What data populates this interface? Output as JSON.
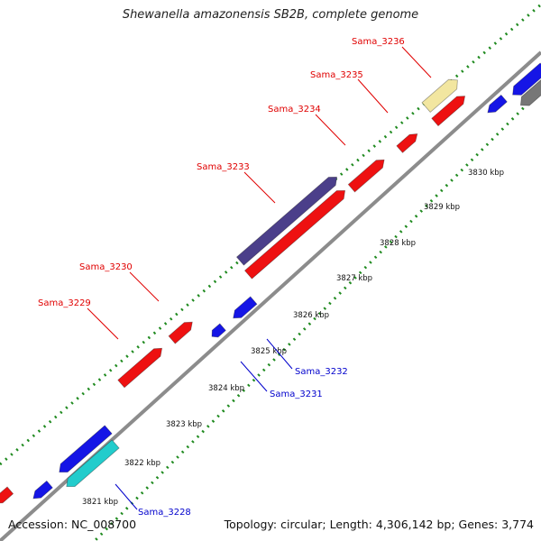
{
  "title": "Shewanella amazonensis SB2B, complete genome",
  "footer": {
    "accession": "Accession: NC_008700",
    "summary": "Topology: circular; Length: 4,306,142 bp; Genes: 3,774"
  },
  "colors": {
    "backbone": "#8c8c8c",
    "tick_dots": "#1f8a1f",
    "forward_label": "#e00000",
    "reverse_label": "#0000cc",
    "gene_red": "#ee1111",
    "gene_blue": "#1515e6",
    "gene_navy": "#4b3f8a",
    "gene_cyan": "#22cccc",
    "gene_khaki": "#f2e6a0",
    "gene_gray": "#777777"
  },
  "ticks": [
    "3821 kbp",
    "3822 kbp",
    "3823 kbp",
    "3824 kbp",
    "3825 kbp",
    "3826 kbp",
    "3827 kbp",
    "3828 kbp",
    "3829 kbp",
    "3830 kbp"
  ],
  "genes": [
    {
      "label": "Sama_3228",
      "strand": "reverse",
      "color": "gene_cyan"
    },
    {
      "label": "Sama_3229",
      "strand": "forward",
      "color": "gene_red"
    },
    {
      "label": "Sama_3230",
      "strand": "forward",
      "color": "gene_red"
    },
    {
      "label": "Sama_3231",
      "strand": "reverse",
      "color": "gene_blue"
    },
    {
      "label": "Sama_3232",
      "strand": "reverse",
      "color": "gene_blue"
    },
    {
      "label": "Sama_3233",
      "strand": "forward",
      "color": "gene_navy"
    },
    {
      "label": "Sama_3234",
      "strand": "forward",
      "color": "gene_red"
    },
    {
      "label": "Sama_3235",
      "strand": "forward",
      "color": "gene_red"
    },
    {
      "label": "Sama_3236",
      "strand": "forward",
      "color": "gene_khaki"
    }
  ]
}
